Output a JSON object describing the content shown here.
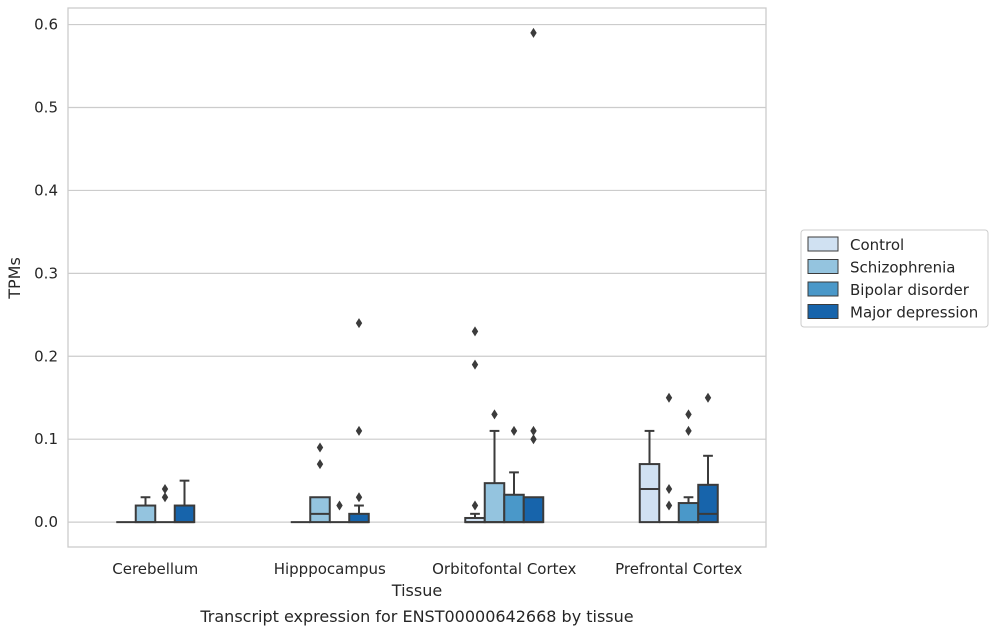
{
  "chart_data": {
    "type": "box",
    "title": "",
    "caption": "Transcript expression for ENST00000642668 by tissue",
    "xlabel": "Tissue",
    "ylabel": "TPMs",
    "ylim": [
      -0.03,
      0.62
    ],
    "yticks": [
      0.0,
      0.1,
      0.2,
      0.3,
      0.4,
      0.5,
      0.6
    ],
    "ytick_labels": [
      "0.0",
      "0.1",
      "0.2",
      "0.3",
      "0.4",
      "0.5",
      "0.6"
    ],
    "grid": "horizontal",
    "legend_position": "right",
    "categories": [
      "Cerebellum",
      "Hipppocampus",
      "Orbitofontal Cortex",
      "Prefrontal Cortex"
    ],
    "series": [
      {
        "name": "Control",
        "color": "#d0e1f2",
        "boxes": [
          {
            "q1": 0.0,
            "median": 0.0,
            "q3": 0.0,
            "whislo": 0.0,
            "whishi": 0.0,
            "fliers": []
          },
          {
            "q1": 0.0,
            "median": 0.0,
            "q3": 0.0,
            "whislo": 0.0,
            "whishi": 0.0,
            "fliers": []
          },
          {
            "q1": 0.0,
            "median": 0.0,
            "q3": 0.005,
            "whislo": 0.0,
            "whishi": 0.01,
            "fliers": [
              0.02,
              0.19,
              0.23
            ]
          },
          {
            "q1": 0.0,
            "median": 0.04,
            "q3": 0.07,
            "whislo": 0.0,
            "whishi": 0.11,
            "fliers": []
          }
        ]
      },
      {
        "name": "Schizophrenia",
        "color": "#94c4df",
        "boxes": [
          {
            "q1": 0.0,
            "median": 0.0,
            "q3": 0.02,
            "whislo": 0.0,
            "whishi": 0.03,
            "fliers": []
          },
          {
            "q1": 0.0,
            "median": 0.01,
            "q3": 0.03,
            "whislo": 0.0,
            "whishi": 0.03,
            "fliers": [
              0.07,
              0.09
            ]
          },
          {
            "q1": 0.0,
            "median": 0.0,
            "q3": 0.047,
            "whislo": 0.0,
            "whishi": 0.11,
            "fliers": [
              0.13
            ]
          },
          {
            "q1": 0.0,
            "median": 0.0,
            "q3": 0.0,
            "whislo": 0.0,
            "whishi": 0.0,
            "fliers": [
              0.02,
              0.04,
              0.15
            ]
          }
        ]
      },
      {
        "name": "Bipolar disorder",
        "color": "#4a98c9",
        "boxes": [
          {
            "q1": 0.0,
            "median": 0.0,
            "q3": 0.0,
            "whislo": 0.0,
            "whishi": 0.0,
            "fliers": [
              0.03,
              0.04
            ]
          },
          {
            "q1": 0.0,
            "median": 0.0,
            "q3": 0.0,
            "whislo": 0.0,
            "whishi": 0.0,
            "fliers": [
              0.02
            ]
          },
          {
            "q1": 0.0,
            "median": 0.0,
            "q3": 0.033,
            "whislo": 0.0,
            "whishi": 0.06,
            "fliers": [
              0.11
            ]
          },
          {
            "q1": 0.0,
            "median": 0.0,
            "q3": 0.023,
            "whislo": 0.0,
            "whishi": 0.03,
            "fliers": [
              0.11,
              0.13
            ]
          }
        ]
      },
      {
        "name": "Major depression",
        "color": "#1764ab",
        "boxes": [
          {
            "q1": 0.0,
            "median": 0.0,
            "q3": 0.02,
            "whislo": 0.0,
            "whishi": 0.05,
            "fliers": []
          },
          {
            "q1": 0.0,
            "median": 0.0,
            "q3": 0.01,
            "whislo": 0.0,
            "whishi": 0.02,
            "fliers": [
              0.03,
              0.11,
              0.24
            ]
          },
          {
            "q1": 0.0,
            "median": 0.0,
            "q3": 0.03,
            "whislo": 0.0,
            "whishi": 0.03,
            "fliers": [
              0.1,
              0.11,
              0.59
            ]
          },
          {
            "q1": 0.0,
            "median": 0.01,
            "q3": 0.045,
            "whislo": 0.0,
            "whishi": 0.08,
            "fliers": [
              0.15
            ]
          }
        ]
      }
    ]
  }
}
